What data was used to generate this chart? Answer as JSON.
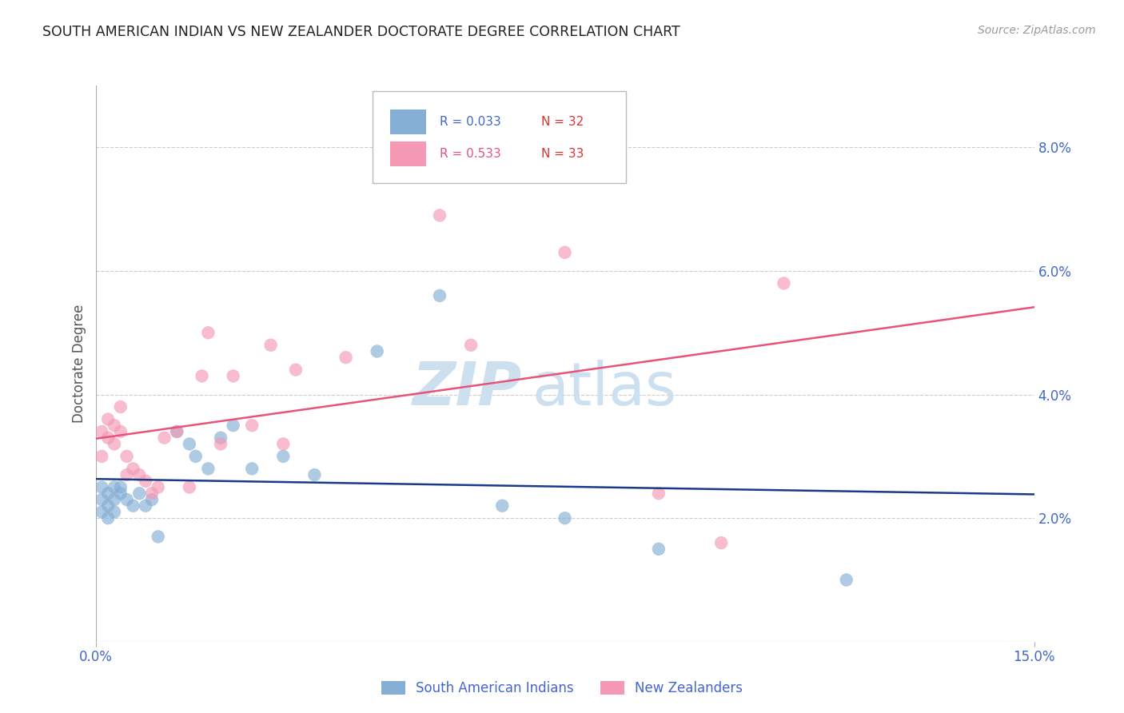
{
  "title": "SOUTH AMERICAN INDIAN VS NEW ZEALANDER DOCTORATE DEGREE CORRELATION CHART",
  "source": "Source: ZipAtlas.com",
  "ylabel": "Doctorate Degree",
  "xlim": [
    0.0,
    0.15
  ],
  "ylim": [
    0.0,
    0.09
  ],
  "yticks": [
    0.0,
    0.02,
    0.04,
    0.06,
    0.08
  ],
  "ytick_labels": [
    "",
    "2.0%",
    "4.0%",
    "6.0%",
    "8.0%"
  ],
  "xtick_vals": [
    0.0,
    0.15
  ],
  "xtick_labels": [
    "0.0%",
    "15.0%"
  ],
  "blue_fill": "#85aed4",
  "pink_fill": "#f498b4",
  "blue_line": "#1a3a8a",
  "pink_line": "#e8537a",
  "axis_label_color": "#4466cc",
  "n_color": "#dd3333",
  "grid_color": "#cccccc",
  "title_color": "#222222",
  "source_color": "#999999",
  "watermark_color": "#cce0f0",
  "sa_x": [
    0.001,
    0.001,
    0.001,
    0.002,
    0.002,
    0.002,
    0.003,
    0.003,
    0.003,
    0.004,
    0.004,
    0.005,
    0.006,
    0.007,
    0.008,
    0.009,
    0.01,
    0.013,
    0.015,
    0.016,
    0.018,
    0.02,
    0.022,
    0.025,
    0.03,
    0.035,
    0.045,
    0.055,
    0.065,
    0.075,
    0.09,
    0.12
  ],
  "sa_y": [
    0.025,
    0.023,
    0.021,
    0.024,
    0.022,
    0.02,
    0.025,
    0.023,
    0.021,
    0.025,
    0.024,
    0.023,
    0.022,
    0.024,
    0.022,
    0.023,
    0.017,
    0.034,
    0.032,
    0.03,
    0.028,
    0.033,
    0.035,
    0.028,
    0.03,
    0.027,
    0.047,
    0.056,
    0.022,
    0.02,
    0.015,
    0.01
  ],
  "nz_x": [
    0.001,
    0.001,
    0.002,
    0.002,
    0.003,
    0.003,
    0.004,
    0.004,
    0.005,
    0.005,
    0.006,
    0.007,
    0.008,
    0.009,
    0.01,
    0.011,
    0.013,
    0.015,
    0.017,
    0.018,
    0.02,
    0.022,
    0.025,
    0.028,
    0.03,
    0.032,
    0.04,
    0.055,
    0.06,
    0.075,
    0.09,
    0.1,
    0.11
  ],
  "nz_y": [
    0.034,
    0.03,
    0.036,
    0.033,
    0.035,
    0.032,
    0.038,
    0.034,
    0.03,
    0.027,
    0.028,
    0.027,
    0.026,
    0.024,
    0.025,
    0.033,
    0.034,
    0.025,
    0.043,
    0.05,
    0.032,
    0.043,
    0.035,
    0.048,
    0.032,
    0.044,
    0.046,
    0.069,
    0.048,
    0.063,
    0.024,
    0.016,
    0.058
  ]
}
